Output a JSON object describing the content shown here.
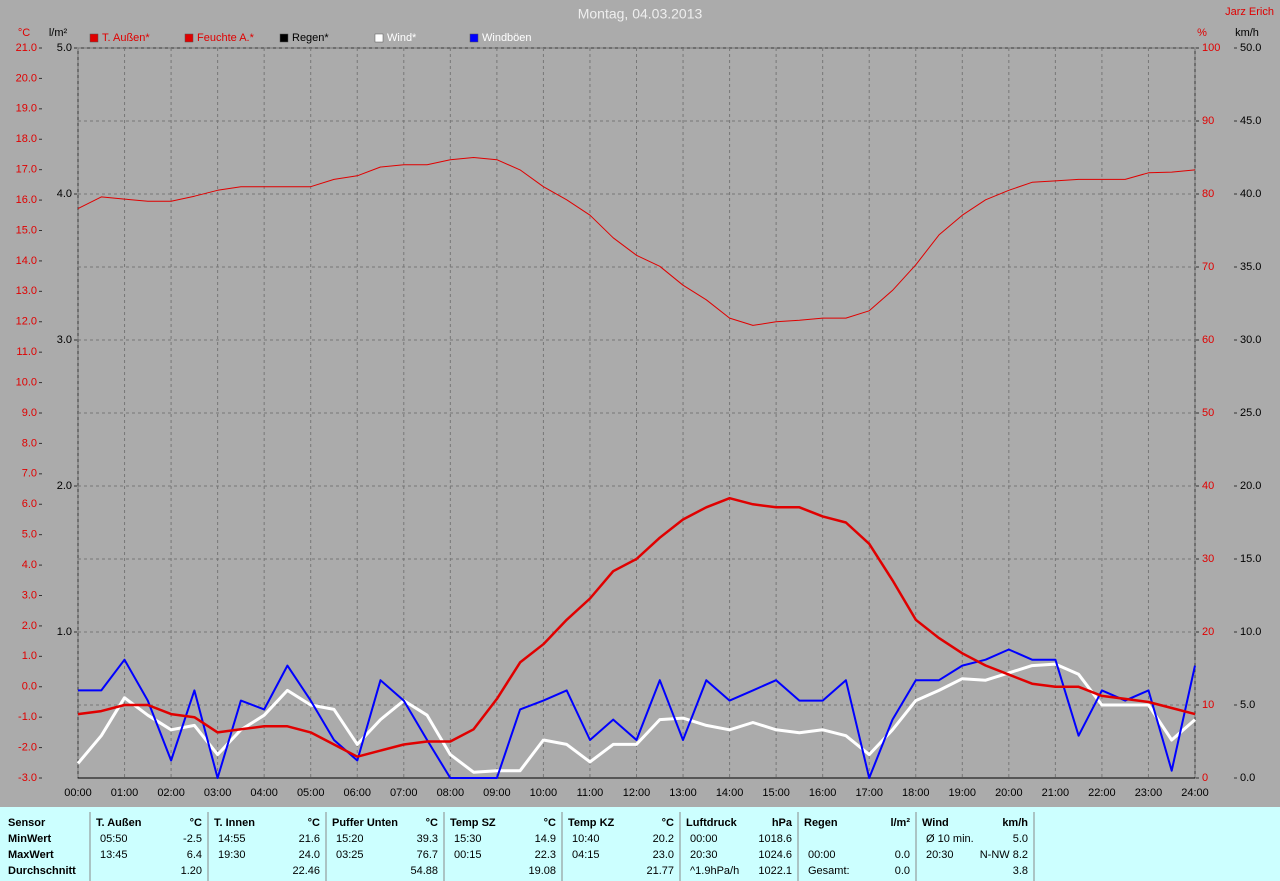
{
  "chart_data": {
    "type": "line",
    "title": "Montag, 04.03.2013",
    "credit": "Jarz Erich",
    "y_label": "°C",
    "y2_label": "%",
    "y3_label": "km/h",
    "y4_label": "l/m²",
    "xlim": [
      0,
      24
    ],
    "xticks": [
      {
        "value": 0,
        "label": "00:00"
      },
      {
        "value": 1,
        "label": "01:00"
      },
      {
        "value": 2,
        "label": "02:00"
      },
      {
        "value": 3,
        "label": "03:00"
      },
      {
        "value": 4,
        "label": "04:00"
      },
      {
        "value": 5,
        "label": "05:00"
      },
      {
        "value": 6,
        "label": "06:00"
      },
      {
        "value": 7,
        "label": "07:00"
      },
      {
        "value": 8,
        "label": "08:00"
      },
      {
        "value": 9,
        "label": "09:00"
      },
      {
        "value": 10,
        "label": "10:00"
      },
      {
        "value": 11,
        "label": "11:00"
      },
      {
        "value": 12,
        "label": "12:00"
      },
      {
        "value": 13,
        "label": "13:00"
      },
      {
        "value": 14,
        "label": "14:00"
      },
      {
        "value": 15,
        "label": "15:00"
      },
      {
        "value": 16,
        "label": "16:00"
      },
      {
        "value": 17,
        "label": "17:00"
      },
      {
        "value": 18,
        "label": "18:00"
      },
      {
        "value": 19,
        "label": "19:00"
      },
      {
        "value": 20,
        "label": "20:00"
      },
      {
        "value": 21,
        "label": "21:00"
      },
      {
        "value": 22,
        "label": "22:00"
      },
      {
        "value": 23,
        "label": "23:00"
      },
      {
        "value": 24,
        "label": "24:00"
      }
    ],
    "ylim": [
      -3,
      21
    ],
    "yticks": [
      {
        "value": -3,
        "label": "-3.0"
      },
      {
        "value": -2,
        "label": "-2.0"
      },
      {
        "value": -1,
        "label": "-1.0"
      },
      {
        "value": 0,
        "label": "0.0"
      },
      {
        "value": 1,
        "label": "1.0"
      },
      {
        "value": 2,
        "label": "2.0"
      },
      {
        "value": 3,
        "label": "3.0"
      },
      {
        "value": 4,
        "label": "4.0"
      },
      {
        "value": 5,
        "label": "5.0"
      },
      {
        "value": 6,
        "label": "6.0"
      },
      {
        "value": 7,
        "label": "7.0"
      },
      {
        "value": 8,
        "label": "8.0"
      },
      {
        "value": 9,
        "label": "9.0"
      },
      {
        "value": 10,
        "label": "10.0"
      },
      {
        "value": 11,
        "label": "11.0"
      },
      {
        "value": 12,
        "label": "12.0"
      },
      {
        "value": 13,
        "label": "13.0"
      },
      {
        "value": 14,
        "label": "14.0"
      },
      {
        "value": 15,
        "label": "15.0"
      },
      {
        "value": 16,
        "label": "16.0"
      },
      {
        "value": 17,
        "label": "17.0"
      },
      {
        "value": 18,
        "label": "18.0"
      },
      {
        "value": 19,
        "label": "19.0"
      },
      {
        "value": 20,
        "label": "20.0"
      },
      {
        "value": 21,
        "label": "21.0"
      }
    ],
    "y2lim": [
      0,
      100
    ],
    "y2ticks": [
      0,
      10,
      20,
      30,
      40,
      50,
      60,
      70,
      80,
      90,
      100
    ],
    "y3lim": [
      0,
      50
    ],
    "y3ticks": [
      {
        "value": 0,
        "label": "0.0"
      },
      {
        "value": 5,
        "label": "5.0"
      },
      {
        "value": 10,
        "label": "10.0"
      },
      {
        "value": 15,
        "label": "15.0"
      },
      {
        "value": 20,
        "label": "20.0"
      },
      {
        "value": 25,
        "label": "25.0"
      },
      {
        "value": 30,
        "label": "30.0"
      },
      {
        "value": 35,
        "label": "35.0"
      },
      {
        "value": 40,
        "label": "40.0"
      },
      {
        "value": 45,
        "label": "45.0"
      },
      {
        "value": 50,
        "label": "50.0"
      }
    ],
    "y4lim": [
      0,
      5
    ],
    "y4ticks": [
      {
        "value": 1,
        "label": "1.0"
      },
      {
        "value": 2,
        "label": "2.0"
      },
      {
        "value": 3,
        "label": "3.0"
      },
      {
        "value": 4,
        "label": "4.0"
      },
      {
        "value": 5,
        "label": "5.0"
      }
    ],
    "grid": true,
    "x": [
      0,
      0.5,
      1,
      1.5,
      2,
      2.5,
      3,
      3.5,
      4,
      4.5,
      5,
      5.5,
      6,
      6.5,
      7,
      7.5,
      8,
      8.5,
      9,
      9.5,
      10,
      10.5,
      11,
      11.5,
      12,
      12.5,
      13,
      13.5,
      14,
      14.5,
      15,
      15.5,
      16,
      16.5,
      17,
      17.5,
      18,
      18.5,
      19,
      19.5,
      20,
      20.5,
      21,
      21.5,
      22,
      22.5,
      23,
      23.5,
      24
    ],
    "series": [
      {
        "name": "T. Außen*",
        "color": "#e00000",
        "axis": "y",
        "values": [
          -0.9,
          -0.8,
          -0.6,
          -0.6,
          -0.9,
          -1.0,
          -1.5,
          -1.4,
          -1.3,
          -1.3,
          -1.5,
          -1.9,
          -2.3,
          -2.1,
          -1.9,
          -1.8,
          -1.8,
          -1.4,
          -0.4,
          0.8,
          1.4,
          2.2,
          2.9,
          3.8,
          4.2,
          4.9,
          5.5,
          5.9,
          6.2,
          6.0,
          5.9,
          5.9,
          5.6,
          5.4,
          4.7,
          3.5,
          2.2,
          1.6,
          1.1,
          0.7,
          0.4,
          0.1,
          0.0,
          0.0,
          -0.3,
          -0.4,
          -0.5,
          -0.7,
          -0.9
        ]
      },
      {
        "name": "Feuchte A.*",
        "color": "#e00000",
        "axis": "y2",
        "values": [
          78,
          79.6,
          79.3,
          79,
          79,
          79.7,
          80.5,
          81,
          81,
          81,
          81,
          82,
          82.5,
          83.7,
          84,
          84,
          84.7,
          85,
          84.7,
          83.3,
          81,
          79.2,
          77.1,
          74,
          71.6,
          70.1,
          67.5,
          65.5,
          63,
          62,
          62.5,
          62.7,
          63,
          63,
          64,
          66.8,
          70.3,
          74.4,
          77.1,
          79.2,
          80.5,
          81.6,
          81.8,
          82,
          82,
          82,
          82.9,
          83,
          83.3
        ]
      },
      {
        "name": "Regen*",
        "color": "#000000",
        "axis": "y4",
        "values": [
          0,
          0,
          0,
          0,
          0,
          0,
          0,
          0,
          0,
          0,
          0,
          0,
          0,
          0,
          0,
          0,
          0,
          0,
          0,
          0,
          0,
          0,
          0,
          0,
          0,
          0,
          0,
          0,
          0,
          0,
          0,
          0,
          0,
          0,
          0,
          0,
          0,
          0,
          0,
          0,
          0,
          0,
          0,
          0,
          0,
          0,
          0,
          0,
          0
        ]
      },
      {
        "name": "Wind*",
        "color": "#ffffff",
        "axis": "y3",
        "values": [
          1.0,
          2.9,
          5.5,
          4.3,
          3.3,
          3.6,
          1.6,
          3.3,
          4.3,
          6.0,
          5.0,
          4.7,
          2.3,
          4.0,
          5.3,
          4.3,
          1.6,
          0.4,
          0.5,
          0.5,
          2.6,
          2.3,
          1.1,
          2.3,
          2.3,
          4.0,
          4.1,
          3.6,
          3.3,
          3.8,
          3.3,
          3.1,
          3.3,
          2.9,
          1.6,
          3.3,
          5.3,
          6.0,
          6.8,
          6.7,
          7.2,
          7.7,
          7.8,
          7.1,
          5.0,
          5.0,
          5.0,
          2.6,
          4.0
        ]
      },
      {
        "name": "Windböen",
        "color": "#0000ff",
        "axis": "y3",
        "values": [
          6.0,
          6.0,
          8.1,
          5.3,
          1.2,
          6.0,
          0,
          5.3,
          4.7,
          7.7,
          5.3,
          2.6,
          1.2,
          6.7,
          5.3,
          2.6,
          0,
          0,
          0,
          4.7,
          5.3,
          6.0,
          2.6,
          4.0,
          2.6,
          6.7,
          2.6,
          6.7,
          5.3,
          6.0,
          6.7,
          5.3,
          5.3,
          6.7,
          0,
          4.0,
          6.7,
          6.7,
          7.7,
          8.1,
          8.8,
          8.1,
          8.1,
          2.9,
          6.0,
          5.3,
          6.0,
          0.5,
          7.7
        ]
      }
    ]
  },
  "table": {
    "corner": "Sensor",
    "row_labels": [
      "MinWert",
      "MaxWert",
      "Durchschnitt"
    ],
    "columns": [
      {
        "name": "T. Außen",
        "unit": "°C"
      },
      {
        "name": "T. Innen",
        "unit": "°C"
      },
      {
        "name": "Puffer Unten",
        "unit": "°C"
      },
      {
        "name": "Temp SZ",
        "unit": "°C"
      },
      {
        "name": "Temp KZ",
        "unit": "°C"
      },
      {
        "name": "Luftdruck",
        "unit": "hPa"
      },
      {
        "name": "Regen",
        "unit": "l/m²"
      },
      {
        "name": "Wind",
        "unit": "km/h"
      }
    ],
    "rows": [
      [
        [
          "05:50",
          "-2.5"
        ],
        [
          "14:55",
          "21.6"
        ],
        [
          "15:20",
          "39.3"
        ],
        [
          "15:30",
          "14.9"
        ],
        [
          "10:40",
          "20.2"
        ],
        [
          "00:00",
          "1018.6"
        ],
        [
          null,
          null
        ],
        [
          "Ø 10 min.",
          "5.0"
        ]
      ],
      [
        [
          "13:45",
          "6.4"
        ],
        [
          "19:30",
          "24.0"
        ],
        [
          "03:25",
          "76.7"
        ],
        [
          "00:15",
          "22.3"
        ],
        [
          "04:15",
          "23.0"
        ],
        [
          "20:30",
          "1024.6"
        ],
        [
          "00:00",
          "0.0"
        ],
        [
          "20:30",
          "N-NW 8.2"
        ]
      ],
      [
        [
          null,
          "1.20"
        ],
        [
          null,
          "22.46"
        ],
        [
          null,
          "54.88"
        ],
        [
          null,
          "19.08"
        ],
        [
          null,
          "21.77"
        ],
        [
          "^1.9hPa/h",
          "1022.1"
        ],
        [
          "Gesamt:",
          "0.0"
        ],
        [
          null,
          "3.8"
        ]
      ]
    ]
  }
}
